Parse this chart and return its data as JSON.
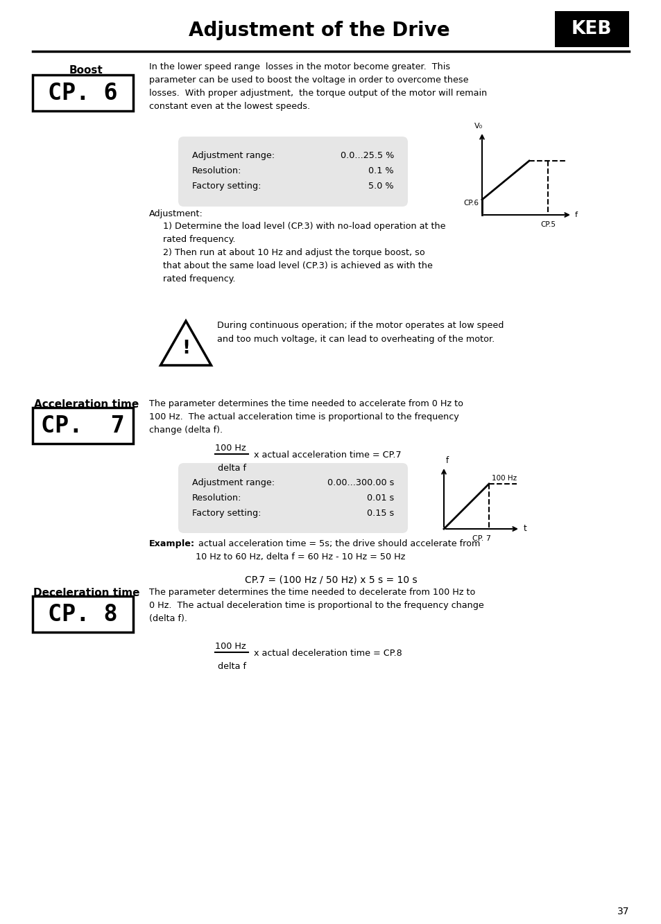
{
  "title": "Adjustment of the Drive",
  "page_number": "37",
  "bg_color": "#ffffff",
  "boost_label": "Boost",
  "boost_display": "CP. 6",
  "boost_desc_lines": [
    "In the lower speed range  losses in the motor become greater.  This",
    "parameter can be used to boost the voltage in order to overcome these",
    "losses.  With proper adjustment,  the torque output of the motor will remain",
    "constant even at the lowest speeds."
  ],
  "boost_adj_range_label": "Adjustment range:",
  "boost_adj_range_val": "0.0...25.5 %",
  "boost_resolution_label": "Resolution:",
  "boost_resolution_val": "0.1 %",
  "boost_factory_label": "Factory setting:",
  "boost_factory_val": "5.0 %",
  "boost_warning": "During continuous operation; if the motor operates at low speed\nand too much voltage, it can lead to overheating of the motor.",
  "accel_label": "Acceleration time",
  "accel_display": "CP.  7",
  "accel_desc_lines": [
    "The parameter determines the time needed to accelerate from 0 Hz to",
    "100 Hz.  The actual acceleration time is proportional to the frequency",
    "change (delta f)."
  ],
  "accel_formula_num": "100 Hz",
  "accel_formula_bar": "——————",
  "accel_formula_rest": " x actual acceleration time = CP.7",
  "accel_formula_den": "delta f",
  "accel_adj_range_label": "Adjustment range:",
  "accel_adj_range_val": "0.00...300.00 s",
  "accel_resolution_label": "Resolution:",
  "accel_resolution_val": "0.01 s",
  "accel_factory_label": "Factory setting:",
  "accel_factory_val": "0.15 s",
  "accel_graph_label": "CP. 7",
  "accel_example_bold": "Example:",
  "accel_example_rest": " actual acceleration time = 5s; the drive should accelerate from\n10 Hz to 60 Hz, delta f = 60 Hz - 10 Hz = 50 Hz",
  "accel_formula_display": "CP.7 = (100 Hz / 50 Hz) x 5 s = 10 s",
  "decel_label": "Deceleration time",
  "decel_display": "CP. 8",
  "decel_desc_lines": [
    "The parameter determines the time needed to decelerate from 100 Hz to",
    "0 Hz.  The actual deceleration time is proportional to the frequency change",
    "(delta f)."
  ],
  "decel_formula_num": "100 Hz",
  "decel_formula_bar": "——————",
  "decel_formula_rest": " x actual deceleration time = CP.8",
  "decel_formula_den": "delta f"
}
